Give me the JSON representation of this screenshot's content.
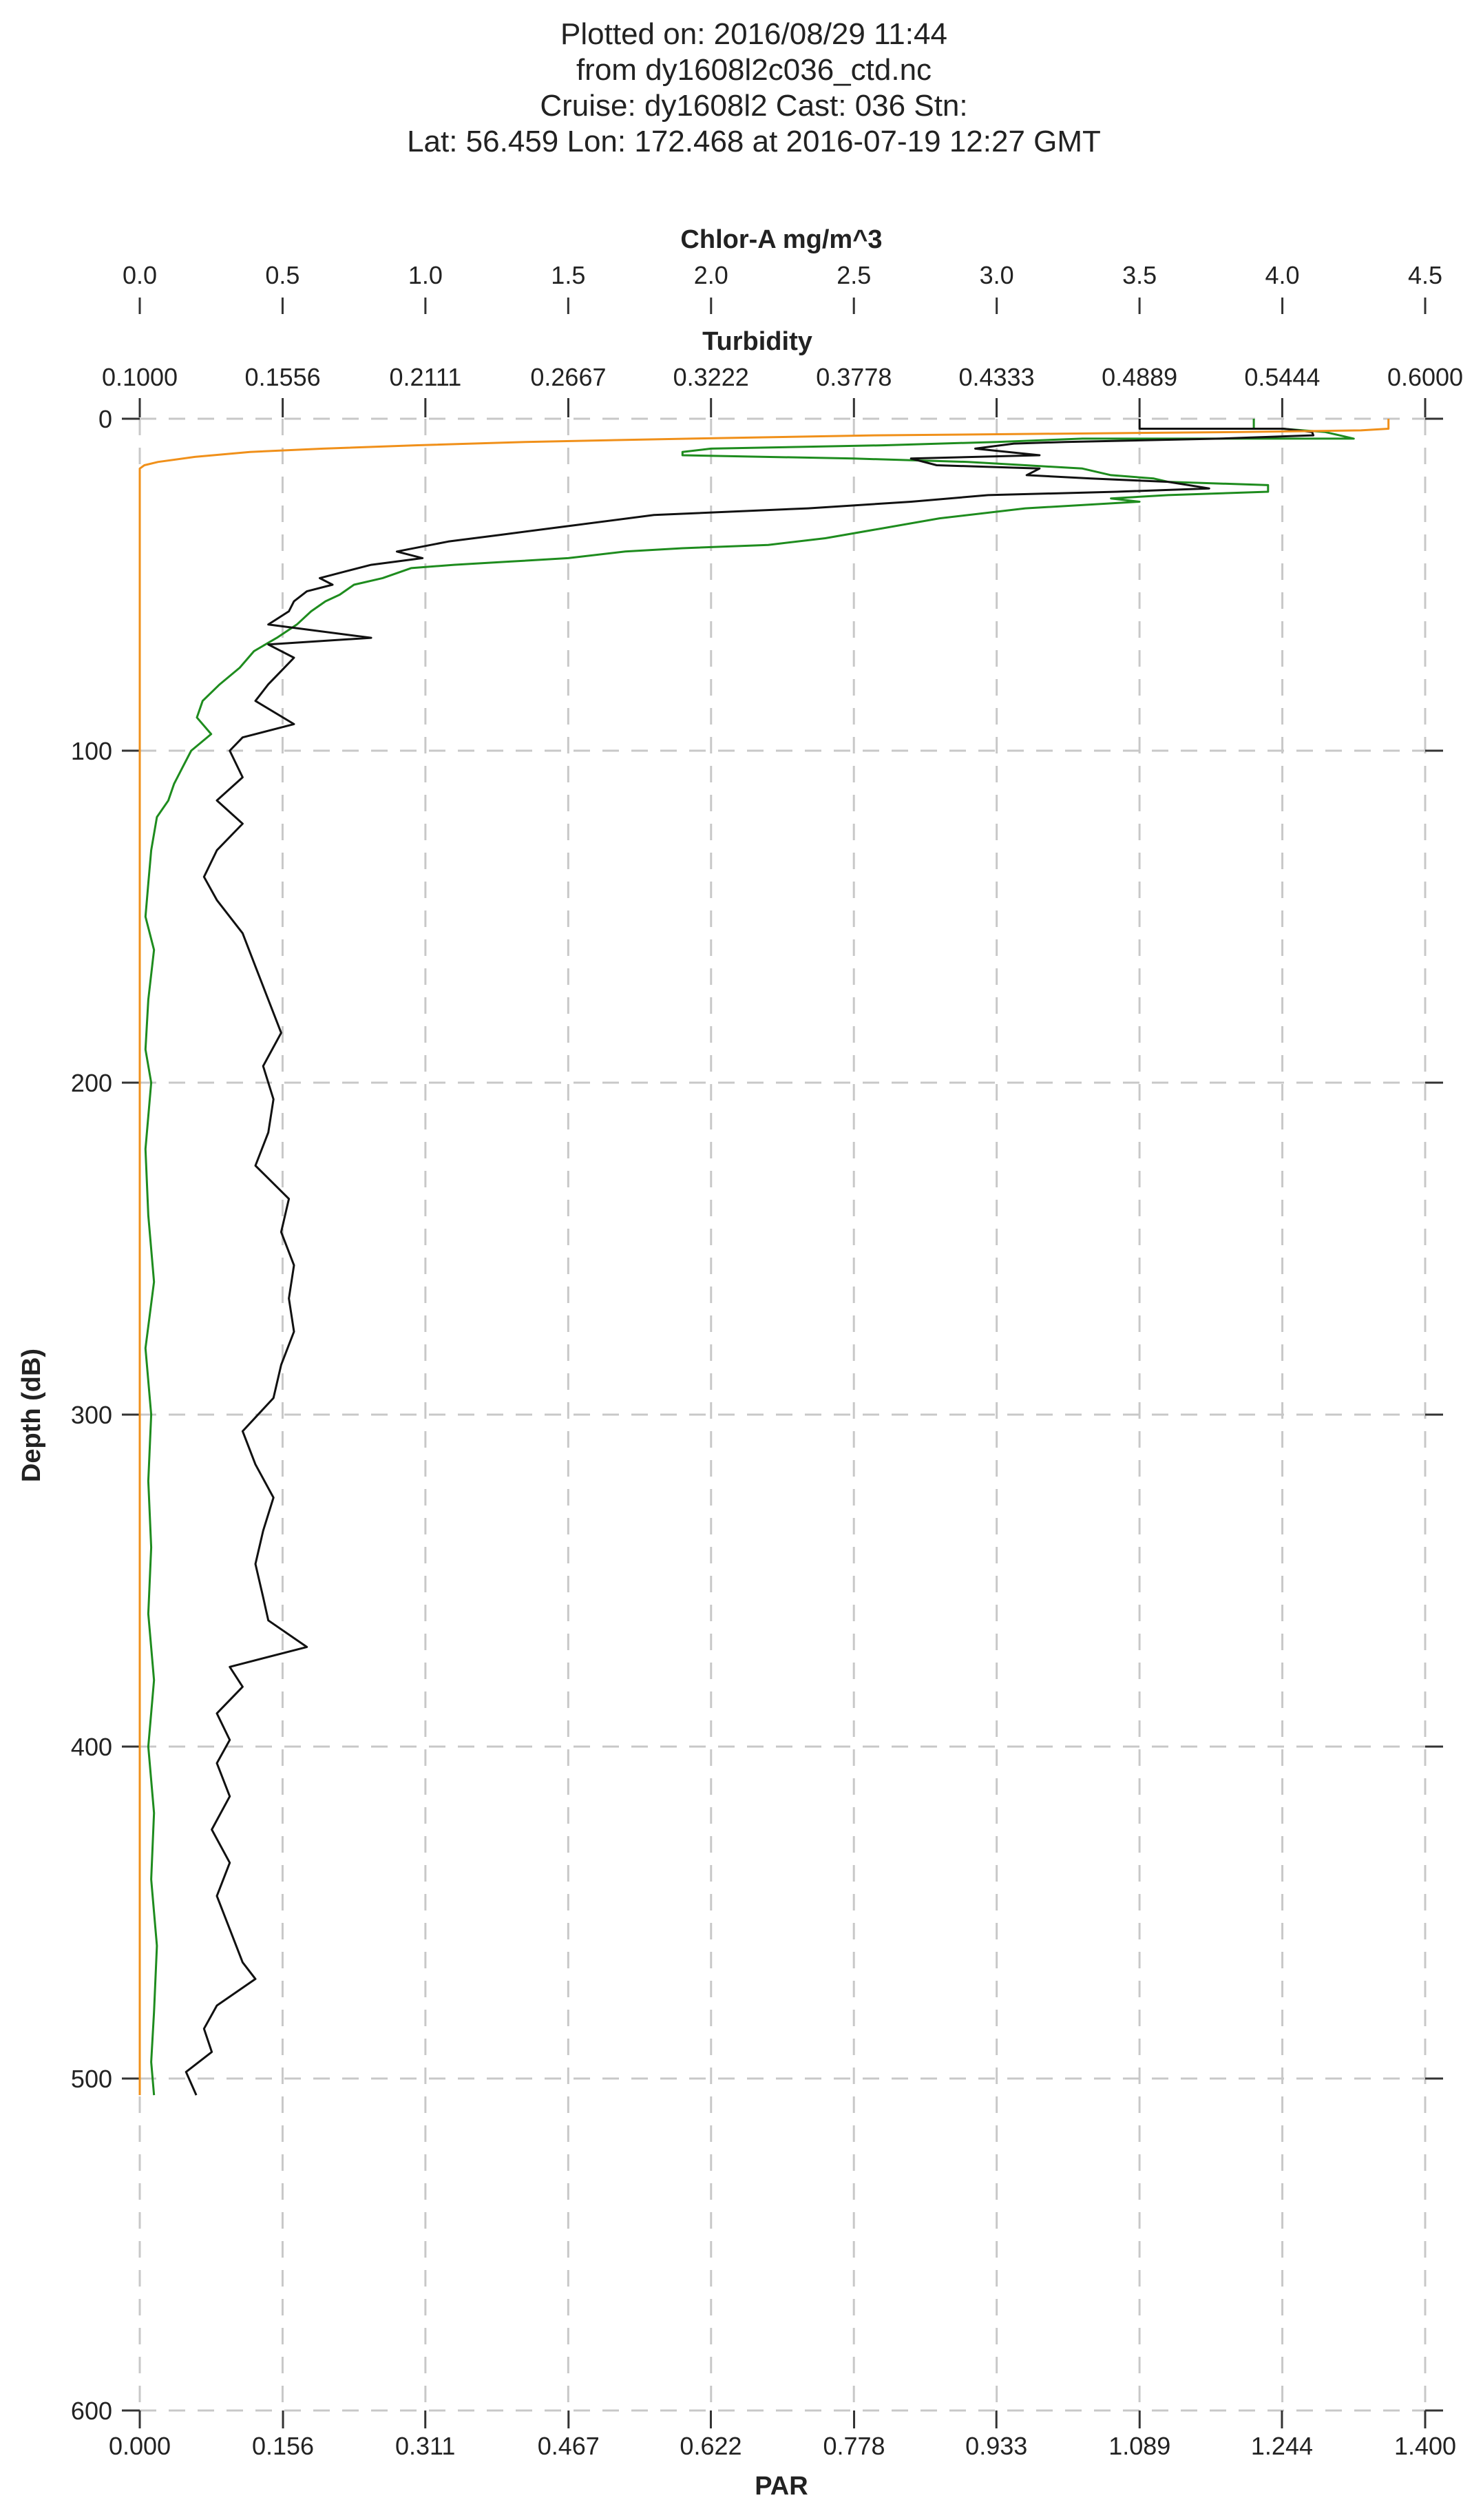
{
  "header": {
    "lines": [
      "Plotted on: 2016/08/29 11:44",
      "from dy1608l2c036_ctd.nc",
      "Cruise: dy1608l2  Cast: 036  Stn:",
      "Lat: 56.459  Lon: 172.468 at 2016-07-19 12:27 GMT"
    ]
  },
  "chart_data": {
    "type": "line",
    "y_axis": {
      "label": "Depth (dB)",
      "range": [
        0,
        600
      ],
      "inverted": true,
      "ticks": [
        0,
        100,
        200,
        300,
        400,
        500,
        600
      ],
      "tick_labels": [
        "0",
        "100",
        "200",
        "300",
        "400",
        "500",
        "600"
      ]
    },
    "x_axes": [
      {
        "id": "chlor",
        "label": "Chlor-A mg/m^3",
        "position": "top",
        "range": [
          0,
          4.5
        ],
        "ticks": [
          0,
          0.5,
          1,
          1.5,
          2,
          2.5,
          3,
          3.5,
          4,
          4.5
        ],
        "tick_labels": [
          "0.0",
          "0.5",
          "1.0",
          "1.5",
          "2.0",
          "2.5",
          "3.0",
          "3.5",
          "4.0",
          "4.5"
        ]
      },
      {
        "id": "turbidity",
        "label": "Turbidity",
        "position": "top-inner",
        "range": [
          0.1,
          0.6
        ],
        "ticks": [
          0.1,
          0.1556,
          0.2111,
          0.2667,
          0.3222,
          0.3778,
          0.4333,
          0.4889,
          0.5444,
          0.6
        ],
        "tick_labels": [
          "0.1000",
          "0.1556",
          "0.2111",
          "0.2667",
          "0.3222",
          "0.3778",
          "0.4333",
          "0.4889",
          "0.5444",
          "0.6000"
        ]
      },
      {
        "id": "par",
        "label": "PAR",
        "position": "bottom",
        "range": [
          0,
          1.4
        ],
        "ticks": [
          0,
          0.156,
          0.311,
          0.467,
          0.622,
          0.778,
          0.933,
          1.089,
          1.244,
          1.4
        ],
        "tick_labels": [
          "0.000",
          "0.156",
          "0.311",
          "0.467",
          "0.622",
          "0.778",
          "0.933",
          "1.089",
          "1.244",
          "1.400"
        ]
      }
    ],
    "grid": true,
    "colors": {
      "chlor": "#1e8c1e",
      "turbidity": "#111111",
      "par": "#f0901a",
      "grid": "#c8c8c8"
    },
    "series": [
      {
        "axis": "chlor",
        "color": "#1e8c1e",
        "points": [
          [
            3.9,
            0
          ],
          [
            3.9,
            3
          ],
          [
            4.0,
            3
          ],
          [
            4.15,
            4
          ],
          [
            4.2,
            5
          ],
          [
            4.25,
            6
          ],
          [
            3.3,
            6
          ],
          [
            3.0,
            7
          ],
          [
            2.6,
            8
          ],
          [
            2.0,
            9
          ],
          [
            1.9,
            10
          ],
          [
            1.9,
            11
          ],
          [
            2.5,
            12
          ],
          [
            2.9,
            13
          ],
          [
            3.1,
            14
          ],
          [
            3.3,
            15
          ],
          [
            3.4,
            17
          ],
          [
            3.55,
            18
          ],
          [
            3.6,
            19
          ],
          [
            3.95,
            20
          ],
          [
            3.95,
            22
          ],
          [
            3.6,
            23
          ],
          [
            3.4,
            24
          ],
          [
            3.5,
            25
          ],
          [
            3.1,
            27
          ],
          [
            2.8,
            30
          ],
          [
            2.6,
            33
          ],
          [
            2.4,
            36
          ],
          [
            2.2,
            38
          ],
          [
            1.9,
            39
          ],
          [
            1.7,
            40
          ],
          [
            1.5,
            42
          ],
          [
            1.3,
            43
          ],
          [
            1.1,
            44
          ],
          [
            0.95,
            45
          ],
          [
            0.85,
            48
          ],
          [
            0.75,
            50
          ],
          [
            0.7,
            53
          ],
          [
            0.65,
            55
          ],
          [
            0.6,
            58
          ],
          [
            0.55,
            62
          ],
          [
            0.48,
            66
          ],
          [
            0.4,
            70
          ],
          [
            0.35,
            75
          ],
          [
            0.28,
            80
          ],
          [
            0.22,
            85
          ],
          [
            0.2,
            90
          ],
          [
            0.25,
            95
          ],
          [
            0.18,
            100
          ],
          [
            0.15,
            105
          ],
          [
            0.12,
            110
          ],
          [
            0.1,
            115
          ],
          [
            0.06,
            120
          ],
          [
            0.04,
            130
          ],
          [
            0.03,
            140
          ],
          [
            0.02,
            150
          ],
          [
            0.05,
            160
          ],
          [
            0.03,
            175
          ],
          [
            0.02,
            190
          ],
          [
            0.04,
            200
          ],
          [
            0.02,
            220
          ],
          [
            0.03,
            240
          ],
          [
            0.05,
            260
          ],
          [
            0.02,
            280
          ],
          [
            0.04,
            300
          ],
          [
            0.03,
            320
          ],
          [
            0.04,
            340
          ],
          [
            0.03,
            360
          ],
          [
            0.05,
            380
          ],
          [
            0.03,
            400
          ],
          [
            0.05,
            420
          ],
          [
            0.04,
            440
          ],
          [
            0.06,
            460
          ],
          [
            0.05,
            480
          ],
          [
            0.04,
            495
          ],
          [
            0.05,
            505
          ]
        ]
      },
      {
        "axis": "turbidity",
        "color": "#111111",
        "points": [
          [
            0.4889,
            0
          ],
          [
            0.4889,
            3
          ],
          [
            0.545,
            3
          ],
          [
            0.556,
            4
          ],
          [
            0.5565,
            5
          ],
          [
            0.52,
            6
          ],
          [
            0.46,
            7
          ],
          [
            0.44,
            7.5
          ],
          [
            0.425,
            9
          ],
          [
            0.45,
            11
          ],
          [
            0.4,
            12
          ],
          [
            0.41,
            14
          ],
          [
            0.45,
            15
          ],
          [
            0.445,
            17
          ],
          [
            0.47,
            18
          ],
          [
            0.5,
            19
          ],
          [
            0.516,
            21
          ],
          [
            0.48,
            22
          ],
          [
            0.43,
            23
          ],
          [
            0.4,
            25
          ],
          [
            0.36,
            27
          ],
          [
            0.3,
            29
          ],
          [
            0.27,
            32
          ],
          [
            0.24,
            35
          ],
          [
            0.22,
            37
          ],
          [
            0.2,
            40
          ],
          [
            0.21,
            42
          ],
          [
            0.19,
            44
          ],
          [
            0.18,
            46
          ],
          [
            0.17,
            48
          ],
          [
            0.175,
            50
          ],
          [
            0.165,
            52
          ],
          [
            0.16,
            55
          ],
          [
            0.158,
            58
          ],
          [
            0.15,
            62
          ],
          [
            0.19,
            66
          ],
          [
            0.15,
            68
          ],
          [
            0.16,
            72
          ],
          [
            0.155,
            76
          ],
          [
            0.15,
            80
          ],
          [
            0.145,
            85
          ],
          [
            0.16,
            92
          ],
          [
            0.14,
            96
          ],
          [
            0.135,
            100
          ],
          [
            0.14,
            108
          ],
          [
            0.13,
            115
          ],
          [
            0.14,
            122
          ],
          [
            0.13,
            130
          ],
          [
            0.125,
            138
          ],
          [
            0.13,
            145
          ],
          [
            0.14,
            155
          ],
          [
            0.145,
            165
          ],
          [
            0.15,
            175
          ],
          [
            0.155,
            185
          ],
          [
            0.148,
            195
          ],
          [
            0.152,
            205
          ],
          [
            0.15,
            215
          ],
          [
            0.145,
            225
          ],
          [
            0.158,
            235
          ],
          [
            0.155,
            245
          ],
          [
            0.16,
            255
          ],
          [
            0.158,
            265
          ],
          [
            0.16,
            275
          ],
          [
            0.155,
            285
          ],
          [
            0.152,
            295
          ],
          [
            0.14,
            305
          ],
          [
            0.145,
            315
          ],
          [
            0.152,
            325
          ],
          [
            0.148,
            335
          ],
          [
            0.145,
            345
          ],
          [
            0.148,
            355
          ],
          [
            0.15,
            362
          ],
          [
            0.165,
            370
          ],
          [
            0.135,
            376
          ],
          [
            0.14,
            382
          ],
          [
            0.13,
            390
          ],
          [
            0.135,
            398
          ],
          [
            0.13,
            405
          ],
          [
            0.135,
            415
          ],
          [
            0.128,
            425
          ],
          [
            0.135,
            435
          ],
          [
            0.13,
            445
          ],
          [
            0.135,
            455
          ],
          [
            0.14,
            465
          ],
          [
            0.145,
            470
          ],
          [
            0.13,
            478
          ],
          [
            0.125,
            485
          ],
          [
            0.128,
            492
          ],
          [
            0.118,
            498
          ],
          [
            0.122,
            505
          ]
        ]
      },
      {
        "axis": "par",
        "color": "#f0901a",
        "points": [
          [
            1.36,
            0
          ],
          [
            1.36,
            3
          ],
          [
            1.33,
            3.5
          ],
          [
            1.2,
            4
          ],
          [
            1.0,
            4.5
          ],
          [
            0.8,
            5
          ],
          [
            0.6,
            6
          ],
          [
            0.42,
            7
          ],
          [
            0.3,
            8
          ],
          [
            0.2,
            9
          ],
          [
            0.12,
            10
          ],
          [
            0.06,
            11.5
          ],
          [
            0.02,
            13
          ],
          [
            0.005,
            14
          ],
          [
            0.0,
            15
          ],
          [
            0.0,
            505
          ]
        ]
      }
    ]
  }
}
